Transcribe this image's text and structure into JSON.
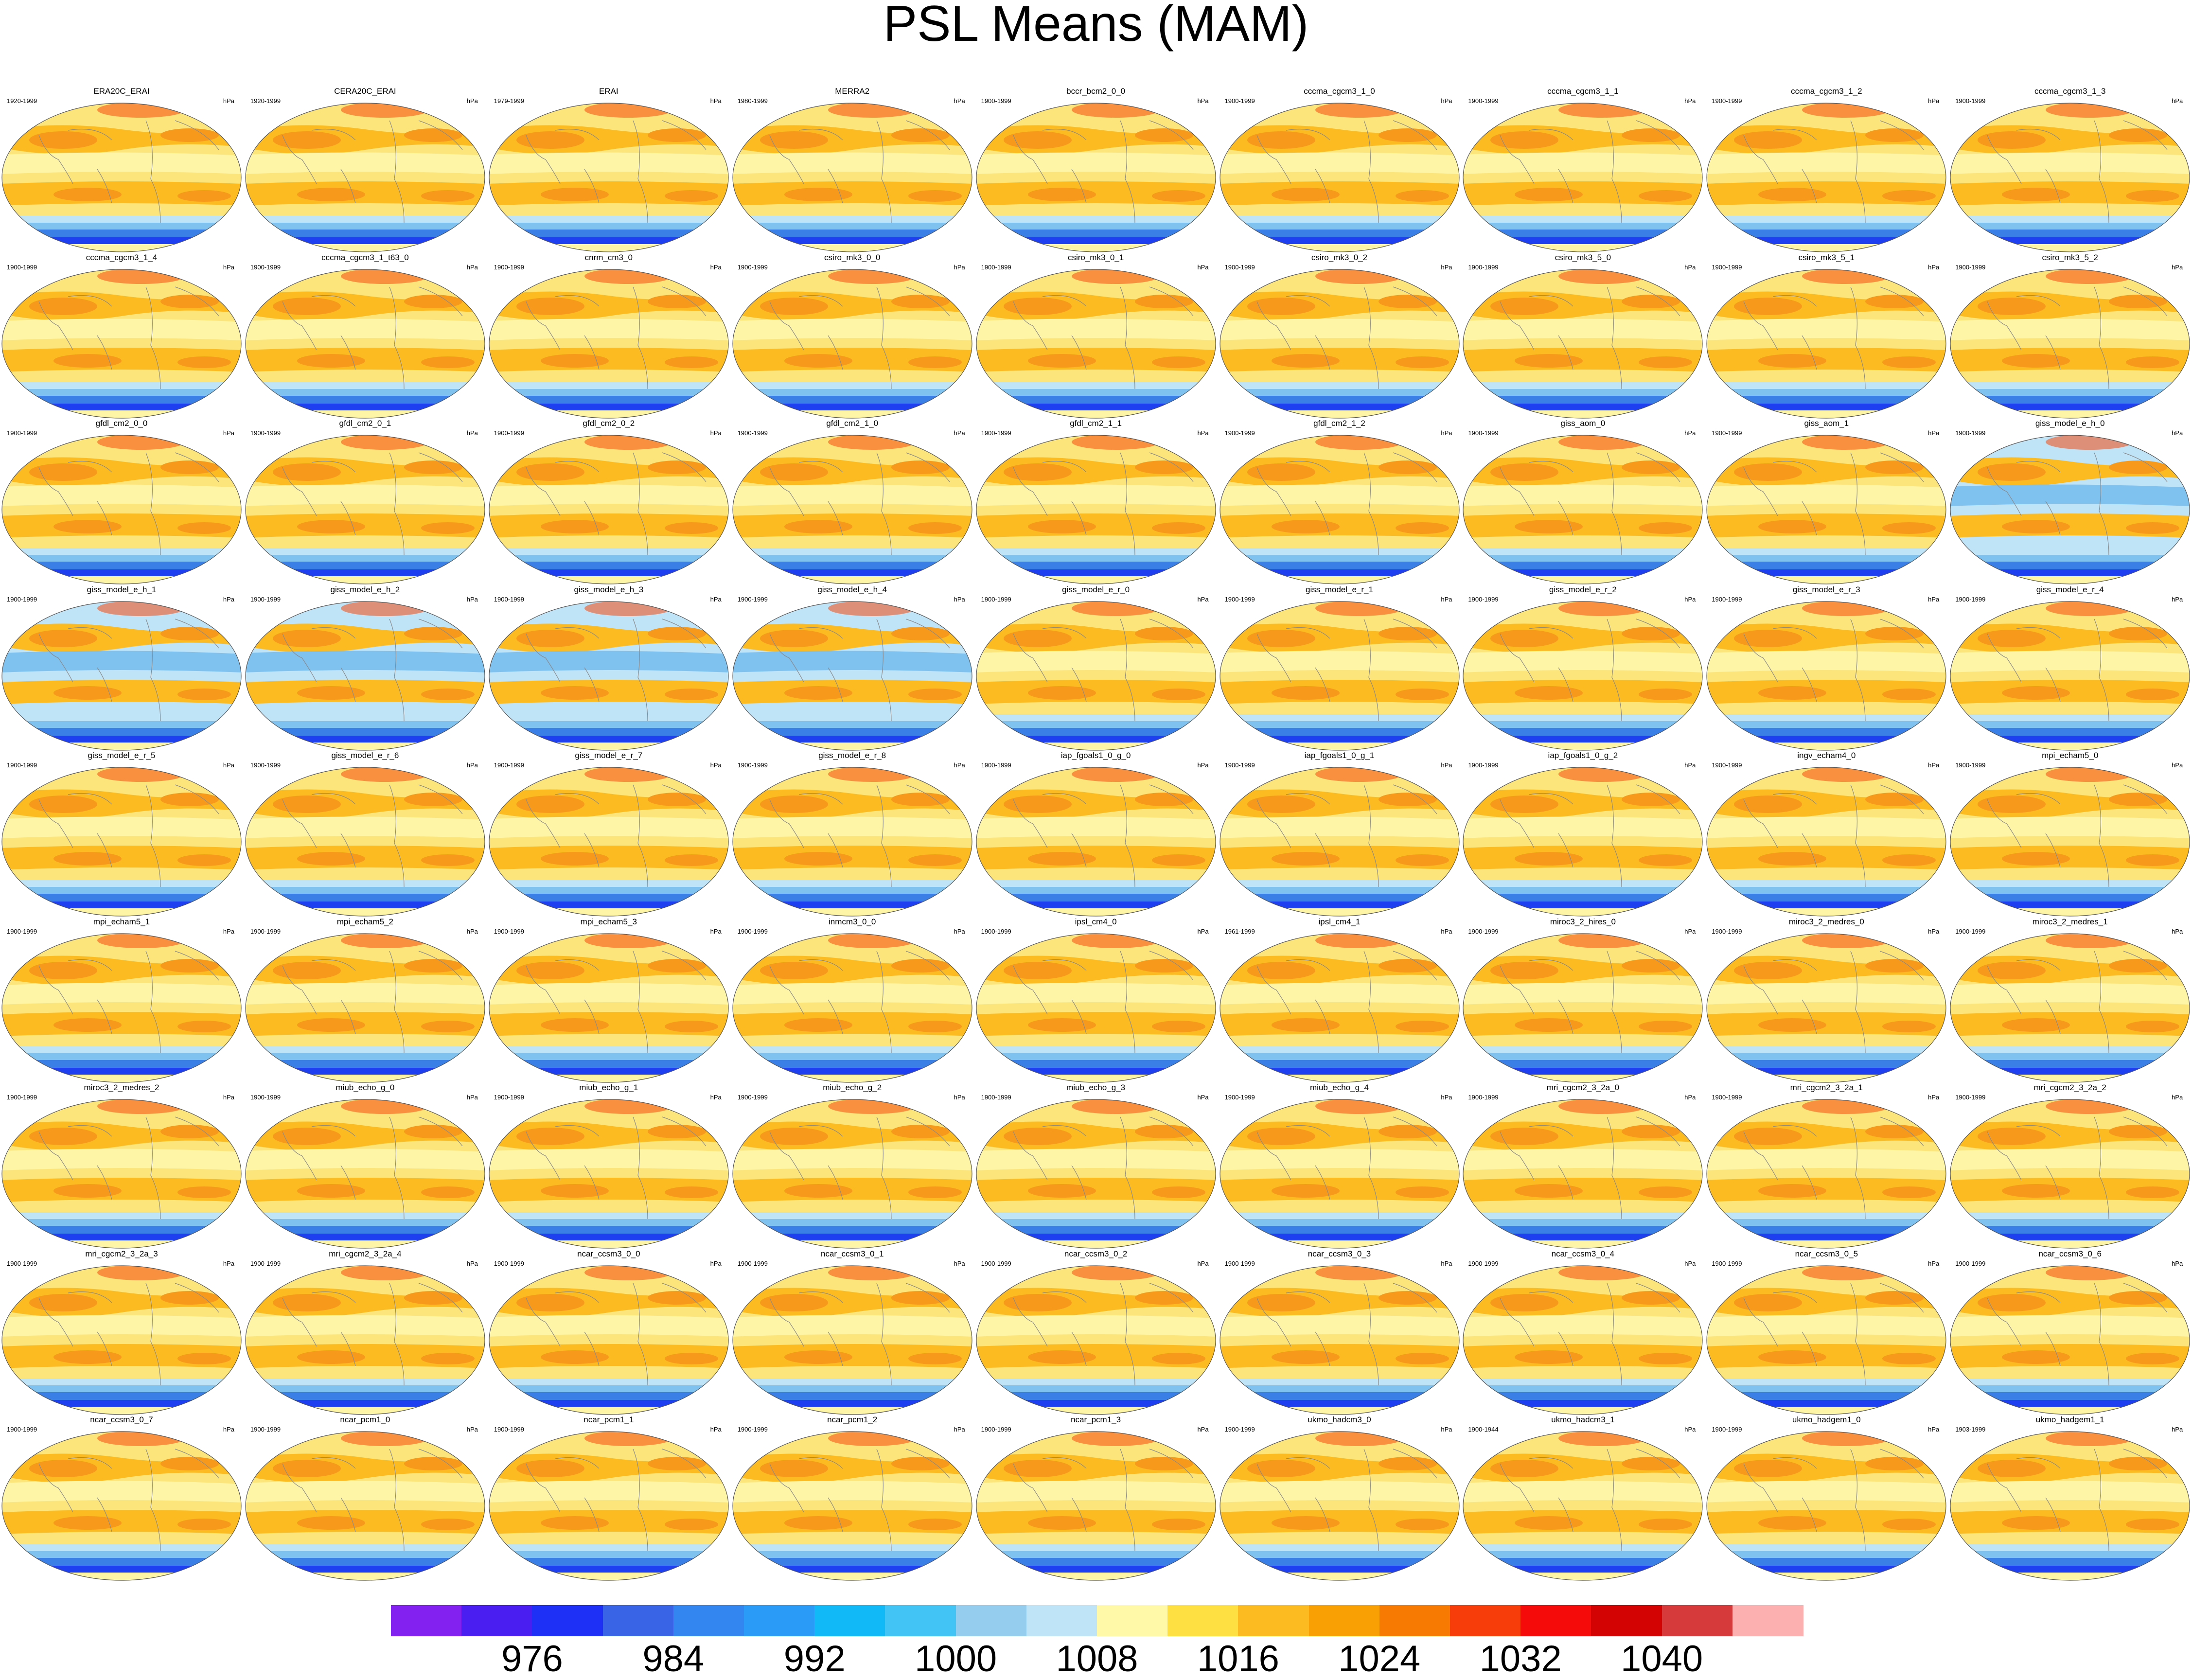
{
  "title": "PSL Means (MAM)",
  "units": "hPa",
  "panels": [
    {
      "name": "ERA20C_ERAI",
      "years": "1920-1999"
    },
    {
      "name": "CERA20C_ERAI",
      "years": "1920-1999"
    },
    {
      "name": "ERAI",
      "years": "1979-1999"
    },
    {
      "name": "MERRA2",
      "years": "1980-1999"
    },
    {
      "name": "bccr_bcm2_0_0",
      "years": "1900-1999"
    },
    {
      "name": "cccma_cgcm3_1_0",
      "years": "1900-1999"
    },
    {
      "name": "cccma_cgcm3_1_1",
      "years": "1900-1999"
    },
    {
      "name": "cccma_cgcm3_1_2",
      "years": "1900-1999"
    },
    {
      "name": "cccma_cgcm3_1_3",
      "years": "1900-1999"
    },
    {
      "name": "cccma_cgcm3_1_4",
      "years": "1900-1999"
    },
    {
      "name": "cccma_cgcm3_1_t63_0",
      "years": "1900-1999"
    },
    {
      "name": "cnrm_cm3_0",
      "years": "1900-1999"
    },
    {
      "name": "csiro_mk3_0_0",
      "years": "1900-1999"
    },
    {
      "name": "csiro_mk3_0_1",
      "years": "1900-1999"
    },
    {
      "name": "csiro_mk3_0_2",
      "years": "1900-1999"
    },
    {
      "name": "csiro_mk3_5_0",
      "years": "1900-1999"
    },
    {
      "name": "csiro_mk3_5_1",
      "years": "1900-1999"
    },
    {
      "name": "csiro_mk3_5_2",
      "years": "1900-1999"
    },
    {
      "name": "gfdl_cm2_0_0",
      "years": "1900-1999"
    },
    {
      "name": "gfdl_cm2_0_1",
      "years": "1900-1999"
    },
    {
      "name": "gfdl_cm2_0_2",
      "years": "1900-1999"
    },
    {
      "name": "gfdl_cm2_1_0",
      "years": "1900-1999"
    },
    {
      "name": "gfdl_cm2_1_1",
      "years": "1900-1999"
    },
    {
      "name": "gfdl_cm2_1_2",
      "years": "1900-1999"
    },
    {
      "name": "giss_aom_0",
      "years": "1900-1999"
    },
    {
      "name": "giss_aom_1",
      "years": "1900-1999"
    },
    {
      "name": "giss_model_e_h_0",
      "years": "1900-1999"
    },
    {
      "name": "giss_model_e_h_1",
      "years": "1900-1999"
    },
    {
      "name": "giss_model_e_h_2",
      "years": "1900-1999"
    },
    {
      "name": "giss_model_e_h_3",
      "years": "1900-1999"
    },
    {
      "name": "giss_model_e_h_4",
      "years": "1900-1999"
    },
    {
      "name": "giss_model_e_r_0",
      "years": "1900-1999"
    },
    {
      "name": "giss_model_e_r_1",
      "years": "1900-1999"
    },
    {
      "name": "giss_model_e_r_2",
      "years": "1900-1999"
    },
    {
      "name": "giss_model_e_r_3",
      "years": "1900-1999"
    },
    {
      "name": "giss_model_e_r_4",
      "years": "1900-1999"
    },
    {
      "name": "giss_model_e_r_5",
      "years": "1900-1999"
    },
    {
      "name": "giss_model_e_r_6",
      "years": "1900-1999"
    },
    {
      "name": "giss_model_e_r_7",
      "years": "1900-1999"
    },
    {
      "name": "giss_model_e_r_8",
      "years": "1900-1999"
    },
    {
      "name": "iap_fgoals1_0_g_0",
      "years": "1900-1999"
    },
    {
      "name": "iap_fgoals1_0_g_1",
      "years": "1900-1999"
    },
    {
      "name": "iap_fgoals1_0_g_2",
      "years": "1900-1999"
    },
    {
      "name": "ingv_echam4_0",
      "years": "1900-1999"
    },
    {
      "name": "mpi_echam5_0",
      "years": "1900-1999"
    },
    {
      "name": "mpi_echam5_1",
      "years": "1900-1999"
    },
    {
      "name": "mpi_echam5_2",
      "years": "1900-1999"
    },
    {
      "name": "mpi_echam5_3",
      "years": "1900-1999"
    },
    {
      "name": "inmcm3_0_0",
      "years": "1900-1999"
    },
    {
      "name": "ipsl_cm4_0",
      "years": "1900-1999"
    },
    {
      "name": "ipsl_cm4_1",
      "years": "1961-1999"
    },
    {
      "name": "miroc3_2_hires_0",
      "years": "1900-1999"
    },
    {
      "name": "miroc3_2_medres_0",
      "years": "1900-1999"
    },
    {
      "name": "miroc3_2_medres_1",
      "years": "1900-1999"
    },
    {
      "name": "miroc3_2_medres_2",
      "years": "1900-1999"
    },
    {
      "name": "miub_echo_g_0",
      "years": "1900-1999"
    },
    {
      "name": "miub_echo_g_1",
      "years": "1900-1999"
    },
    {
      "name": "miub_echo_g_2",
      "years": "1900-1999"
    },
    {
      "name": "miub_echo_g_3",
      "years": "1900-1999"
    },
    {
      "name": "miub_echo_g_4",
      "years": "1900-1999"
    },
    {
      "name": "mri_cgcm2_3_2a_0",
      "years": "1900-1999"
    },
    {
      "name": "mri_cgcm2_3_2a_1",
      "years": "1900-1999"
    },
    {
      "name": "mri_cgcm2_3_2a_2",
      "years": "1900-1999"
    },
    {
      "name": "mri_cgcm2_3_2a_3",
      "years": "1900-1999"
    },
    {
      "name": "mri_cgcm2_3_2a_4",
      "years": "1900-1999"
    },
    {
      "name": "ncar_ccsm3_0_0",
      "years": "1900-1999"
    },
    {
      "name": "ncar_ccsm3_0_1",
      "years": "1900-1999"
    },
    {
      "name": "ncar_ccsm3_0_2",
      "years": "1900-1999"
    },
    {
      "name": "ncar_ccsm3_0_3",
      "years": "1900-1999"
    },
    {
      "name": "ncar_ccsm3_0_4",
      "years": "1900-1999"
    },
    {
      "name": "ncar_ccsm3_0_5",
      "years": "1900-1999"
    },
    {
      "name": "ncar_ccsm3_0_6",
      "years": "1900-1999"
    },
    {
      "name": "ncar_ccsm3_0_7",
      "years": "1900-1999"
    },
    {
      "name": "ncar_pcm1_0",
      "years": "1900-1999"
    },
    {
      "name": "ncar_pcm1_1",
      "years": "1900-1999"
    },
    {
      "name": "ncar_pcm1_2",
      "years": "1900-1999"
    },
    {
      "name": "ncar_pcm1_3",
      "years": "1900-1999"
    },
    {
      "name": "ukmo_hadcm3_0",
      "years": "1900-1999"
    },
    {
      "name": "ukmo_hadcm3_1",
      "years": "1900-1944"
    },
    {
      "name": "ukmo_hadgem1_0",
      "years": "1900-1999"
    },
    {
      "name": "ukmo_hadgem1_1",
      "years": "1903-1999"
    }
  ],
  "colorbar": {
    "colors": [
      "#8221f0",
      "#4a1df0",
      "#1e30f5",
      "#3a64e6",
      "#3385f0",
      "#2a9cf7",
      "#12b9f7",
      "#42c5f5",
      "#95cdee",
      "#bfe3f7",
      "#fff9a8",
      "#fee042",
      "#fbbb21",
      "#f9a004",
      "#f77b02",
      "#f63d0a",
      "#f50c0a",
      "#d40303",
      "#d73a3a",
      "#fdb0b0"
    ],
    "labels": [
      "976",
      "984",
      "992",
      "1000",
      "1008",
      "1016",
      "1024",
      "1032",
      "1040"
    ]
  },
  "map_colors": {
    "background": "#fce57a",
    "pale_yellow": "#fff5a6",
    "orange": "#fbbb21",
    "dark_orange": "#f79a1c",
    "red": "#f64a10",
    "pale_blue": "#bfe3f7",
    "light_blue": "#7fc1ef",
    "blue": "#3a7fe6",
    "dark_blue": "#1e3ff0",
    "pink": "#fdb0b0",
    "coast": "#8a8a8a"
  }
}
